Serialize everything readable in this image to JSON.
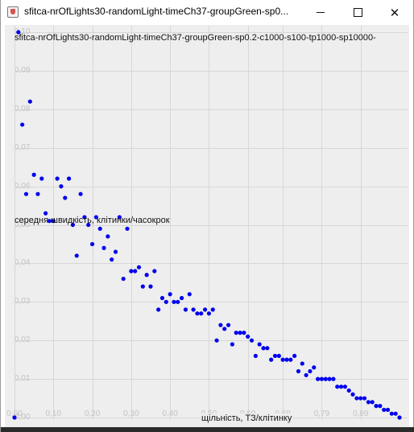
{
  "window": {
    "title": "sfitca-nrOfLights30-randomLight-timeCh37-groupGreen-sp0...",
    "minimize_icon": "minimize-icon",
    "maximize_icon": "maximize-icon",
    "close_icon": "close-icon"
  },
  "chart_data": {
    "type": "scatter",
    "title": "sfitca-nrOfLights30-randomLight-timeCh37-groupGreen-sp0.2-c1000-s100-tp1000-sp10000-",
    "xlabel": "щільність, ТЗ/клітинку",
    "ylabel": "середня швидкість, клітинки/часокрок",
    "xlim": [
      0.0,
      0.99
    ],
    "ylim": [
      0.0,
      0.1
    ],
    "x_ticks": [
      "0,00",
      "0,10",
      "0,20",
      "0,30",
      "0,40",
      "0,50",
      "0,60",
      "0,69",
      "0,79",
      "0,89"
    ],
    "x_tick_values": [
      0.0,
      0.1,
      0.2,
      0.3,
      0.4,
      0.5,
      0.6,
      0.69,
      0.79,
      0.89
    ],
    "y_ticks": [
      "0,00",
      "0,01",
      "0,02",
      "0,03",
      "0,04",
      "0,05",
      "0,06",
      "0,07",
      "0,08",
      "0,09",
      "0,10"
    ],
    "y_tick_values": [
      0.0,
      0.01,
      0.02,
      0.03,
      0.04,
      0.05,
      0.06,
      0.07,
      0.08,
      0.09,
      0.1
    ],
    "grid": true,
    "point_color": "#0000ee",
    "series": [
      {
        "x": [
          0.0,
          0.01,
          0.02,
          0.03,
          0.04,
          0.05,
          0.06,
          0.07,
          0.08,
          0.09,
          0.1,
          0.11,
          0.12,
          0.13,
          0.14,
          0.15,
          0.16,
          0.17,
          0.18,
          0.19,
          0.2,
          0.21,
          0.22,
          0.23,
          0.24,
          0.25,
          0.26,
          0.27,
          0.28,
          0.29,
          0.3,
          0.31,
          0.32,
          0.33,
          0.34,
          0.35,
          0.36,
          0.37,
          0.38,
          0.39,
          0.4,
          0.41,
          0.42,
          0.43,
          0.44,
          0.45,
          0.46,
          0.47,
          0.48,
          0.49,
          0.5,
          0.51,
          0.52,
          0.53,
          0.54,
          0.55,
          0.56,
          0.57,
          0.58,
          0.59,
          0.6,
          0.61,
          0.62,
          0.63,
          0.64,
          0.65,
          0.66,
          0.67,
          0.68,
          0.69,
          0.7,
          0.71,
          0.72,
          0.73,
          0.74,
          0.75,
          0.76,
          0.77,
          0.78,
          0.79,
          0.8,
          0.81,
          0.82,
          0.83,
          0.84,
          0.85,
          0.86,
          0.87,
          0.88,
          0.89,
          0.9,
          0.91,
          0.92,
          0.93,
          0.94,
          0.95,
          0.96,
          0.97,
          0.98,
          0.99
        ],
        "y": [
          0.0,
          0.1,
          0.076,
          0.058,
          0.082,
          0.063,
          0.058,
          0.062,
          0.053,
          0.051,
          0.051,
          0.062,
          0.06,
          0.057,
          0.062,
          0.05,
          0.042,
          0.058,
          0.052,
          0.05,
          0.045,
          0.052,
          0.049,
          0.044,
          0.047,
          0.041,
          0.043,
          0.052,
          0.036,
          0.049,
          0.038,
          0.038,
          0.039,
          0.034,
          0.037,
          0.034,
          0.038,
          0.028,
          0.031,
          0.03,
          0.032,
          0.03,
          0.03,
          0.031,
          0.028,
          0.032,
          0.028,
          0.027,
          0.027,
          0.028,
          0.027,
          0.028,
          0.02,
          0.024,
          0.023,
          0.024,
          0.019,
          0.022,
          0.022,
          0.022,
          0.021,
          0.02,
          0.016,
          0.019,
          0.018,
          0.018,
          0.015,
          0.016,
          0.016,
          0.015,
          0.015,
          0.015,
          0.016,
          0.012,
          0.014,
          0.011,
          0.012,
          0.013,
          0.01,
          0.01,
          0.01,
          0.01,
          0.01,
          0.008,
          0.008,
          0.008,
          0.007,
          0.006,
          0.005,
          0.005,
          0.005,
          0.004,
          0.004,
          0.003,
          0.003,
          0.002,
          0.002,
          0.001,
          0.001,
          0.0
        ]
      }
    ]
  }
}
